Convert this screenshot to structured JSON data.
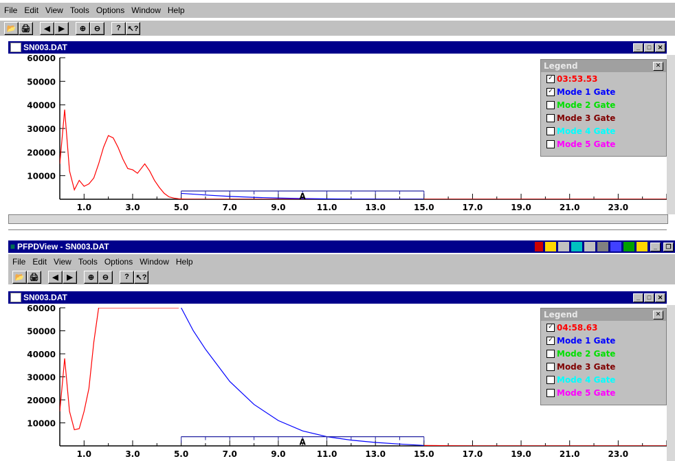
{
  "menu": [
    "File",
    "Edit",
    "View",
    "Tools",
    "Options",
    "Window",
    "Help"
  ],
  "app_title": "PFPDView - SN003.DAT",
  "window_title": "SN003.DAT",
  "toolbar_icons": [
    "open-icon",
    "print-icon",
    "back-arrow-icon",
    "forward-arrow-icon",
    "zoom-in-icon",
    "zoom-out-icon",
    "help-icon",
    "context-help-icon"
  ],
  "legend": {
    "title": "Legend",
    "close": "✕",
    "entries_top": [
      {
        "label": "03:53.53",
        "color": "#ff0000",
        "checked": true
      },
      {
        "label": "Mode 1 Gate",
        "color": "#0000ff",
        "checked": true
      },
      {
        "label": "Mode 2 Gate",
        "color": "#00e000",
        "checked": false
      },
      {
        "label": "Mode 3 Gate",
        "color": "#800000",
        "checked": false
      },
      {
        "label": "Mode 4 Gate",
        "color": "#00ffff",
        "checked": false
      },
      {
        "label": "Mode 5 Gate",
        "color": "#ff00ff",
        "checked": false
      }
    ],
    "entries_bottom": [
      {
        "label": "04:58.63",
        "color": "#ff0000",
        "checked": true
      },
      {
        "label": "Mode 1 Gate",
        "color": "#0000ff",
        "checked": true
      },
      {
        "label": "Mode 2 Gate",
        "color": "#00e000",
        "checked": false
      },
      {
        "label": "Mode 3 Gate",
        "color": "#800000",
        "checked": false
      },
      {
        "label": "Mode 4 Gate",
        "color": "#00ffff",
        "checked": false
      },
      {
        "label": "Mode 5 Gate",
        "color": "#ff00ff",
        "checked": false
      }
    ]
  },
  "gate_marker": "A",
  "chart_data": [
    {
      "type": "line",
      "xlim": [
        0,
        25
      ],
      "ylim": [
        0,
        60000
      ],
      "x_ticks": [
        "1.0",
        "3.0",
        "5.0",
        "7.0",
        "9.0",
        "11.0",
        "13.0",
        "15.0",
        "17.0",
        "19.0",
        "21.0",
        "23.0"
      ],
      "y_ticks": [
        "60000",
        "50000",
        "40000",
        "30000",
        "20000",
        "10000"
      ],
      "series": [
        {
          "color": "#ff0000",
          "x": [
            0,
            0.2,
            0.4,
            0.6,
            0.8,
            1.0,
            1.2,
            1.4,
            1.6,
            1.8,
            2.0,
            2.2,
            2.4,
            2.6,
            2.8,
            3.0,
            3.2,
            3.5,
            3.7,
            3.9,
            4.1,
            4.3,
            4.5,
            4.7,
            4.9,
            5.2,
            6,
            7,
            8,
            9,
            10,
            11,
            12,
            13,
            14,
            15,
            16,
            17,
            18,
            19,
            20,
            21,
            22,
            23,
            24,
            25
          ],
          "y": [
            15000,
            38000,
            12000,
            4000,
            8000,
            5500,
            6500,
            9000,
            15000,
            22000,
            27000,
            26000,
            22000,
            17000,
            13000,
            12500,
            11000,
            15000,
            12000,
            8000,
            5000,
            2500,
            1000,
            500,
            200,
            0,
            0,
            0,
            0,
            0,
            0,
            0,
            0,
            0,
            0,
            0,
            0,
            0,
            0,
            0,
            0,
            0,
            0,
            0,
            0,
            0
          ]
        },
        {
          "color": "#0000ff",
          "x": [
            5.0,
            6,
            7,
            8,
            9,
            10,
            11,
            12,
            13,
            14,
            15
          ],
          "y": [
            2500,
            1800,
            1200,
            800,
            500,
            300,
            150,
            80,
            40,
            20,
            0
          ]
        }
      ],
      "gate": {
        "from": 5.0,
        "to": 15.0,
        "level": 3500
      }
    },
    {
      "type": "line",
      "xlim": [
        0,
        25
      ],
      "ylim": [
        0,
        60000
      ],
      "x_ticks": [
        "1.0",
        "3.0",
        "5.0",
        "7.0",
        "9.0",
        "11.0",
        "13.0",
        "15.0",
        "17.0",
        "19.0",
        "21.0",
        "23.0"
      ],
      "y_ticks": [
        "60000",
        "50000",
        "40000",
        "30000",
        "20000",
        "10000"
      ],
      "series": [
        {
          "color": "#ff0000",
          "x": [
            0,
            0.2,
            0.4,
            0.6,
            0.8,
            1.0,
            1.2,
            1.4,
            1.6,
            1.8,
            2.0,
            2.2,
            2.4,
            4.9
          ],
          "y": [
            15000,
            38000,
            15000,
            7000,
            7500,
            15000,
            25000,
            45000,
            60000,
            60000,
            60000,
            60000,
            60000,
            60000
          ]
        },
        {
          "color": "#0000ff",
          "x": [
            5.0,
            5.5,
            6,
            6.5,
            7,
            8,
            9,
            10,
            11,
            12,
            13,
            14,
            15
          ],
          "y": [
            60000,
            50000,
            42000,
            35000,
            28000,
            18000,
            11000,
            6500,
            4000,
            2500,
            1500,
            800,
            200
          ]
        },
        {
          "color": "#ff0000",
          "x": [
            15,
            16,
            17,
            18,
            19,
            20,
            21,
            22,
            23,
            24,
            25
          ],
          "y": [
            200,
            100,
            0,
            0,
            0,
            0,
            0,
            0,
            0,
            0,
            0
          ]
        }
      ],
      "gate": {
        "from": 5.0,
        "to": 15.0,
        "level": 4000
      }
    }
  ]
}
